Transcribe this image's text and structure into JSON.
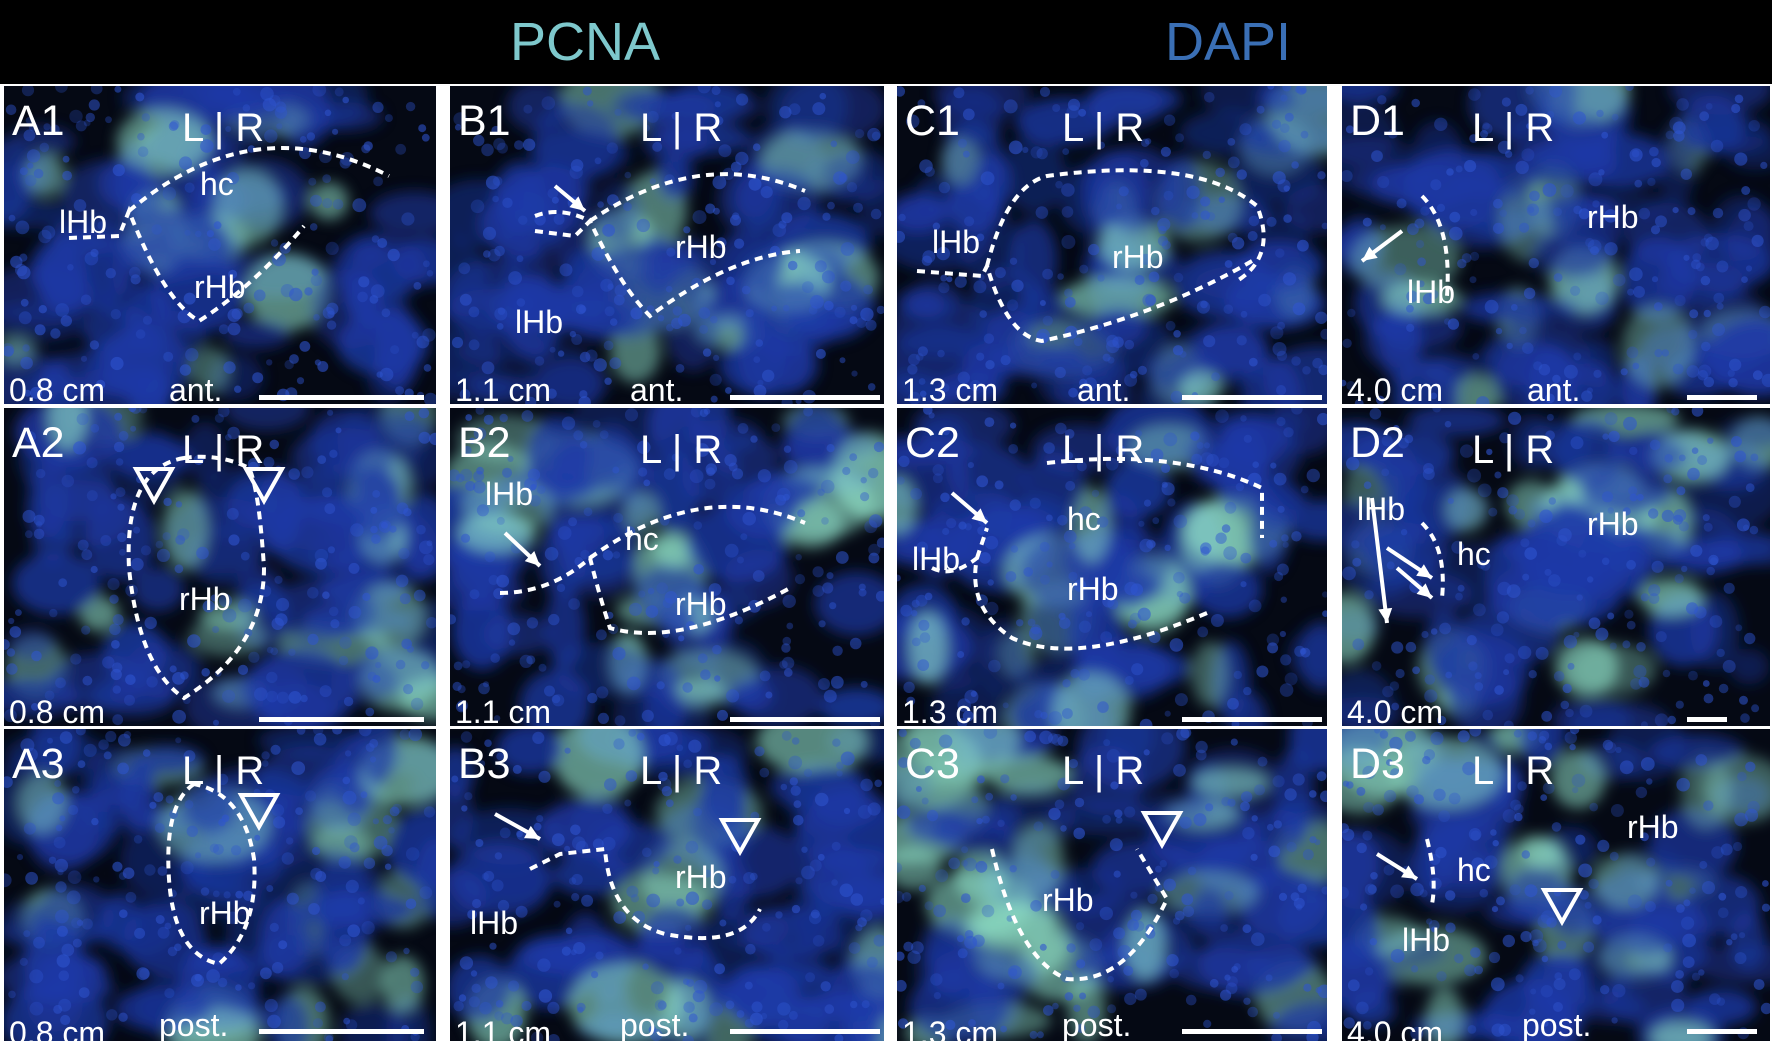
{
  "header": {
    "stain_1": {
      "text": "PCNA",
      "color": "#7ec8cc"
    },
    "stain_2": {
      "text": "DAPI",
      "color": "#3a6fb5"
    }
  },
  "palette": {
    "tissue_blue": "#1d3aa8",
    "pcna_cyan": "#8fe0c8",
    "background": "#050914",
    "outline": "#ffffff"
  },
  "panels": [
    {
      "id": "A1",
      "lr": "L | R",
      "labels": [
        "hc",
        "lHb",
        "rHb"
      ],
      "age": "0.8 cm",
      "orientation": "ant."
    },
    {
      "id": "B1",
      "lr": "L | R",
      "labels": [
        "rHb",
        "lHb"
      ],
      "age": "1.1 cm",
      "orientation": "ant."
    },
    {
      "id": "C1",
      "lr": "L | R",
      "labels": [
        "lHb",
        "rHb"
      ],
      "age": "1.3 cm",
      "orientation": "ant."
    },
    {
      "id": "D1",
      "lr": "L | R",
      "labels": [
        "rHb",
        "lHb"
      ],
      "age": "4.0 cm",
      "orientation": "ant."
    },
    {
      "id": "A2",
      "lr": "L | R",
      "labels": [
        "rHb"
      ],
      "age": "0.8 cm",
      "orientation": ""
    },
    {
      "id": "B2",
      "lr": "L | R",
      "labels": [
        "lHb",
        "hc",
        "rHb"
      ],
      "age": "1.1 cm",
      "orientation": ""
    },
    {
      "id": "C2",
      "lr": "L | R",
      "labels": [
        "hc",
        "lHb",
        "rHb"
      ],
      "age": "1.3 cm",
      "orientation": ""
    },
    {
      "id": "D2",
      "lr": "L | R",
      "labels": [
        "lHb",
        "rHb",
        "hc"
      ],
      "age": "4.0 cm",
      "orientation": ""
    },
    {
      "id": "A3",
      "lr": "L | R",
      "labels": [
        "rHb"
      ],
      "age": "0.8 cm",
      "orientation": "post."
    },
    {
      "id": "B3",
      "lr": "L | R",
      "labels": [
        "rHb",
        "lHb"
      ],
      "age": "1.1 cm",
      "orientation": "post."
    },
    {
      "id": "C3",
      "lr": "L | R",
      "labels": [
        "rHb"
      ],
      "age": "1.3 cm",
      "orientation": "post."
    },
    {
      "id": "D3",
      "lr": "L | R",
      "labels": [
        "rHb",
        "hc",
        "lHb"
      ],
      "age": "4.0 cm",
      "orientation": "post."
    }
  ]
}
